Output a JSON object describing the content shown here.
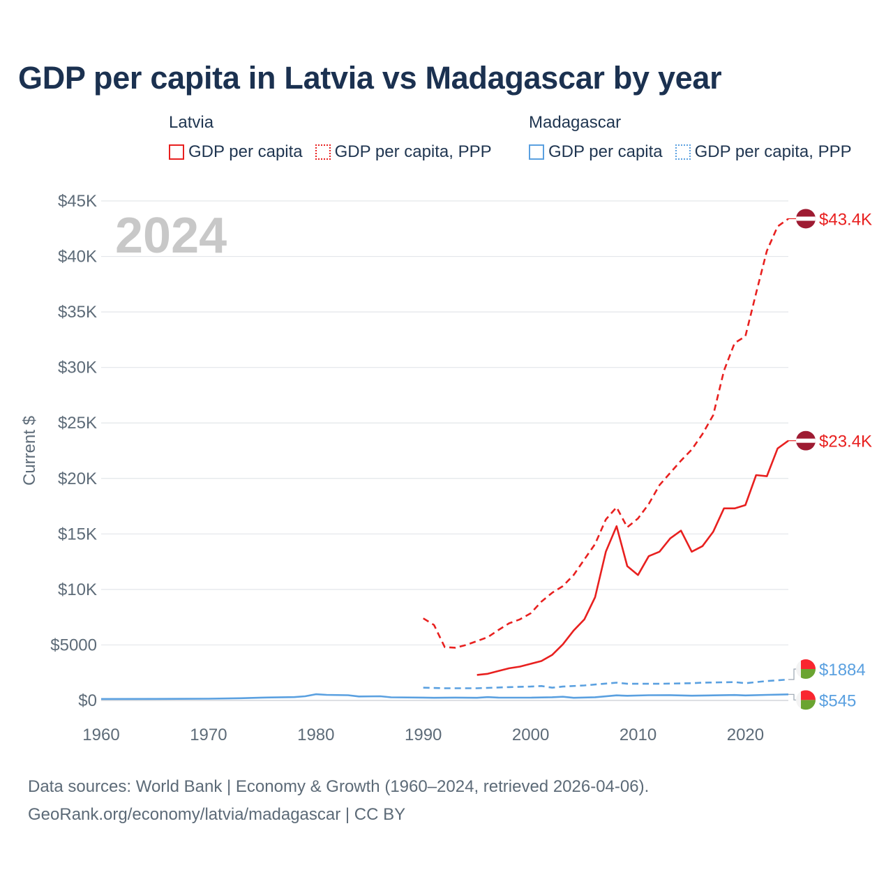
{
  "colors": {
    "latvia": "#e8201f",
    "madagascar": "#5aa0e0",
    "grid": "#e3e6ea",
    "axis_text": "#5d6b78",
    "year_watermark": "#c8c8c8",
    "flag_latvia": "#9e1b32",
    "flag_mada_red": "#f9262f",
    "flag_mada_green": "#6aa431"
  },
  "legend": {
    "latvia": {
      "group": "Latvia",
      "gdp": "GDP per capita",
      "ppp": "GDP per capita, PPP"
    },
    "madagascar": {
      "group": "Madagascar",
      "gdp": "GDP per capita",
      "ppp": "GDP per capita, PPP"
    }
  },
  "footer": {
    "line1": "Data sources: World Bank | Economy & Growth (1960–2024, retrieved 2026-04-06).",
    "line2": "GeoRank.org/economy/latvia/madagascar | CC BY"
  },
  "chart_data": {
    "type": "line",
    "title": "GDP per capita in Latvia vs Madagascar by year",
    "year_watermark": "2024",
    "ylabel": "Current $",
    "xlabel": "",
    "xlim": [
      1960,
      2024
    ],
    "ylim": [
      0,
      45000
    ],
    "x_ticks": [
      1960,
      1970,
      1980,
      1990,
      2000,
      2010,
      2020
    ],
    "x_tick_labels": [
      "1960",
      "1970",
      "1980",
      "1990",
      "2000",
      "2010",
      "2020"
    ],
    "y_ticks": [
      0,
      5000,
      10000,
      15000,
      20000,
      25000,
      30000,
      35000,
      40000,
      45000
    ],
    "y_tick_labels": [
      "$0",
      "$5000",
      "$10K",
      "$15K",
      "$20K",
      "$25K",
      "$30K",
      "$35K",
      "$40K",
      "$45K"
    ],
    "grid": true,
    "series": [
      {
        "name": "Latvia GDP per capita",
        "country": "latvia",
        "style": "solid",
        "end_label": "$23.4K",
        "x": [
          1995,
          1996,
          1997,
          1998,
          1999,
          2000,
          2001,
          2002,
          2003,
          2004,
          2005,
          2006,
          2007,
          2008,
          2009,
          2010,
          2011,
          2012,
          2013,
          2014,
          2015,
          2016,
          2017,
          2018,
          2019,
          2020,
          2021,
          2022,
          2023,
          2024
        ],
        "values": [
          2300,
          2400,
          2650,
          2900,
          3050,
          3300,
          3550,
          4100,
          5050,
          6300,
          7300,
          9300,
          13400,
          15700,
          12100,
          11300,
          13000,
          13400,
          14600,
          15300,
          13400,
          13900,
          15200,
          17300,
          17300,
          17600,
          20300,
          20200,
          22700,
          23400
        ]
      },
      {
        "name": "Latvia GDP per capita, PPP",
        "country": "latvia",
        "style": "dashed",
        "end_label": "$43.4K",
        "x": [
          1990,
          1991,
          1992,
          1993,
          1994,
          1995,
          1996,
          1997,
          1998,
          1999,
          2000,
          2001,
          2002,
          2003,
          2004,
          2005,
          2006,
          2007,
          2008,
          2009,
          2010,
          2011,
          2012,
          2013,
          2014,
          2015,
          2016,
          2017,
          2018,
          2019,
          2020,
          2021,
          2022,
          2023,
          2024
        ],
        "values": [
          7400,
          6800,
          4800,
          4750,
          5000,
          5350,
          5700,
          6350,
          6950,
          7300,
          7850,
          8900,
          9700,
          10300,
          11300,
          12700,
          14100,
          16300,
          17400,
          15600,
          16400,
          17700,
          19400,
          20500,
          21600,
          22600,
          24000,
          25700,
          29700,
          32200,
          32800,
          36700,
          40500,
          42700,
          43400
        ]
      },
      {
        "name": "Madagascar GDP per capita",
        "country": "madagascar",
        "style": "solid",
        "end_label": "$545",
        "x": [
          1960,
          1965,
          1970,
          1973,
          1975,
          1978,
          1979,
          1980,
          1981,
          1983,
          1984,
          1986,
          1987,
          1990,
          1991,
          1993,
          1995,
          1996,
          1997,
          2000,
          2002,
          2003,
          2004,
          2006,
          2008,
          2009,
          2011,
          2013,
          2015,
          2017,
          2019,
          2020,
          2022,
          2024
        ],
        "values": [
          130,
          140,
          160,
          200,
          260,
          300,
          380,
          560,
          500,
          470,
          360,
          380,
          280,
          260,
          240,
          260,
          240,
          300,
          260,
          250,
          290,
          330,
          240,
          290,
          460,
          420,
          470,
          480,
          430,
          460,
          490,
          450,
          500,
          545
        ]
      },
      {
        "name": "Madagascar GDP per capita, PPP",
        "country": "madagascar",
        "style": "dashed",
        "end_label": "$1884",
        "x": [
          1990,
          1992,
          1995,
          1998,
          2000,
          2001,
          2002,
          2003,
          2005,
          2008,
          2009,
          2012,
          2015,
          2016,
          2019,
          2020,
          2021,
          2022,
          2024
        ],
        "values": [
          1150,
          1100,
          1100,
          1200,
          1250,
          1300,
          1150,
          1250,
          1350,
          1600,
          1500,
          1500,
          1550,
          1600,
          1650,
          1550,
          1650,
          1750,
          1884
        ]
      }
    ]
  }
}
